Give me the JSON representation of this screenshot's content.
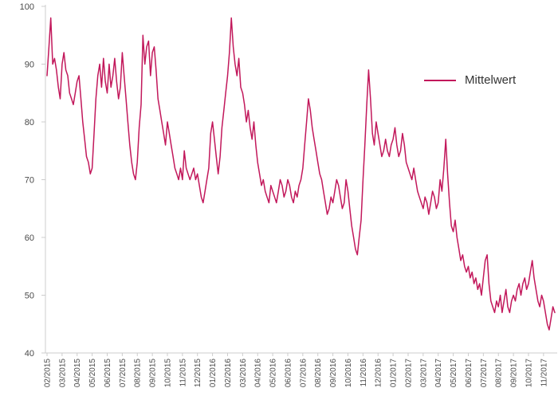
{
  "chart_data": {
    "type": "line",
    "title": "",
    "xlabel": "",
    "ylabel": "",
    "ylim": [
      40,
      100
    ],
    "yticks": [
      40,
      50,
      60,
      70,
      80,
      90,
      100
    ],
    "grid": false,
    "legend_position": "top-right",
    "axis_color": "#cccccc",
    "tick_label_color": "#4a4a4a",
    "points_per_month": 8,
    "x_labels": [
      "02/2015",
      "03/2015",
      "04/2015",
      "05/2015",
      "06/2015",
      "07/2015",
      "08/2015",
      "09/2015",
      "10/2015",
      "11/2015",
      "12/2015",
      "01/2016",
      "02/2016",
      "03/2016",
      "04/2016",
      "05/2016",
      "06/2016",
      "07/2016",
      "08/2016",
      "09/2016",
      "10/2016",
      "11/2016",
      "12/2016",
      "01/2017",
      "02/2017",
      "03/2017",
      "04/2017",
      "05/2017",
      "06/2017",
      "07/2017",
      "08/2017",
      "09/2017",
      "10/2017",
      "11/2017"
    ],
    "series": [
      {
        "name": "Mittelwert",
        "color": "#c2185b",
        "values": [
          88,
          93,
          98,
          90,
          91,
          89,
          86,
          84,
          90,
          92,
          89,
          88,
          85,
          84,
          83,
          85,
          87,
          88,
          84,
          80,
          77,
          74,
          73,
          71,
          72,
          78,
          84,
          88,
          90,
          86,
          91,
          87,
          85,
          90,
          86,
          88,
          91,
          87,
          84,
          86,
          92,
          88,
          84,
          80,
          76,
          73,
          71,
          70,
          73,
          79,
          83,
          95,
          90,
          93,
          94,
          88,
          92,
          93,
          89,
          84,
          82,
          80,
          78,
          76,
          80,
          78,
          76,
          74,
          72,
          71,
          70,
          72,
          70,
          75,
          72,
          71,
          70,
          71,
          72,
          70,
          71,
          69,
          67,
          66,
          68,
          70,
          72,
          78,
          80,
          77,
          74,
          71,
          74,
          79,
          82,
          85,
          88,
          92,
          98,
          93,
          90,
          88,
          91,
          86,
          85,
          83,
          80,
          82,
          79,
          77,
          80,
          76,
          73,
          71,
          69,
          70,
          68,
          67,
          66,
          69,
          68,
          67,
          66,
          68,
          70,
          69,
          67,
          68,
          70,
          69,
          67,
          66,
          68,
          67,
          69,
          70,
          72,
          76,
          80,
          84,
          82,
          79,
          77,
          75,
          73,
          71,
          70,
          68,
          66,
          64,
          65,
          67,
          66,
          68,
          70,
          69,
          67,
          65,
          66,
          70,
          68,
          65,
          62,
          60,
          58,
          57,
          60,
          63,
          70,
          76,
          83,
          89,
          84,
          78,
          76,
          80,
          78,
          76,
          74,
          75,
          77,
          75,
          74,
          76,
          77,
          79,
          76,
          74,
          75,
          78,
          76,
          73,
          72,
          71,
          70,
          72,
          70,
          68,
          67,
          66,
          65,
          67,
          66,
          64,
          66,
          68,
          67,
          65,
          66,
          70,
          68,
          72,
          77,
          71,
          66,
          62,
          61,
          63,
          60,
          58,
          56,
          57,
          55,
          54,
          55,
          53,
          54,
          52,
          53,
          51,
          52,
          50,
          53,
          56,
          57,
          52,
          49,
          48,
          47,
          49,
          48,
          50,
          47,
          49,
          51,
          48,
          47,
          49,
          50,
          49,
          51,
          52,
          50,
          52,
          53,
          51,
          52,
          54,
          56,
          53,
          51,
          49,
          48,
          50,
          49,
          47,
          45,
          44,
          46,
          48,
          47
        ]
      }
    ]
  },
  "legend": {
    "label": "Mittelwert"
  }
}
